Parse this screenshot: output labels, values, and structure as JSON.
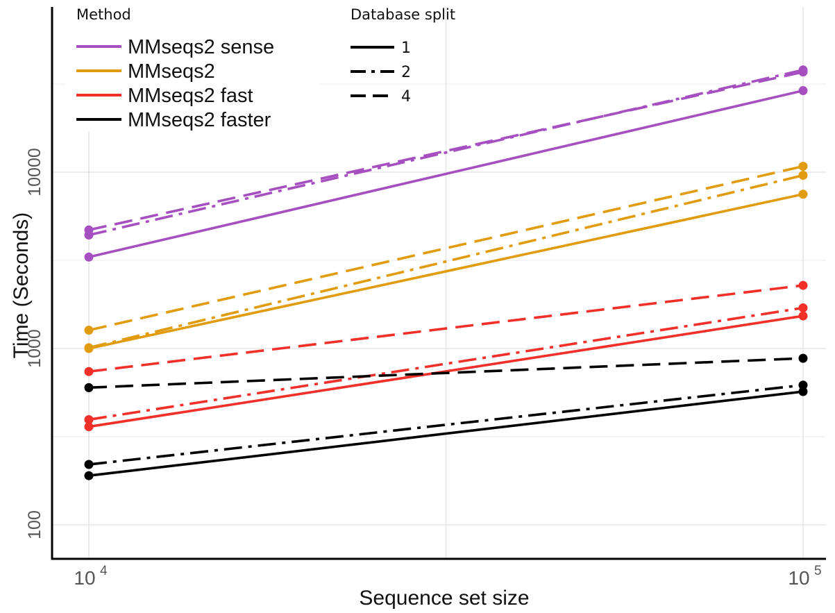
{
  "chart_data": {
    "type": "line",
    "xlabel": "Sequence set size",
    "ylabel": "Time (Seconds)",
    "x_scale": "log",
    "y_scale": "log",
    "x": [
      10000,
      100000
    ],
    "x_tick_labels": [
      {
        "base": "10",
        "exp": "4"
      },
      {
        "base": "10",
        "exp": "5"
      }
    ],
    "y_ticks": [
      100,
      1000,
      10000
    ],
    "y_tick_labels": [
      "100",
      "1000",
      "10000"
    ],
    "grid": true,
    "legend_method_title": "Method",
    "legend_split_title": "Database split",
    "methods": [
      {
        "name": "MMseqs2 sense",
        "color": "#a64fc1"
      },
      {
        "name": "MMseqs2",
        "color": "#e19b0e"
      },
      {
        "name": "MMseqs2 fast",
        "color": "#f2302a"
      },
      {
        "name": "MMseqs2 faster",
        "color": "#000000"
      }
    ],
    "splits": [
      {
        "name": "1",
        "style": "solid"
      },
      {
        "name": "2",
        "style": "dashdot"
      },
      {
        "name": "4",
        "style": "dashed"
      }
    ],
    "series": [
      {
        "method": "MMseqs2 sense",
        "split": "1",
        "values": [
          3300,
          29000
        ]
      },
      {
        "method": "MMseqs2 sense",
        "split": "2",
        "values": [
          4400,
          38000
        ]
      },
      {
        "method": "MMseqs2 sense",
        "split": "4",
        "values": [
          4700,
          37000
        ]
      },
      {
        "method": "MMseqs2",
        "split": "1",
        "values": [
          1000,
          7500
        ]
      },
      {
        "method": "MMseqs2",
        "split": "2",
        "values": [
          1010,
          9600
        ]
      },
      {
        "method": "MMseqs2",
        "split": "4",
        "values": [
          1270,
          10800
        ]
      },
      {
        "method": "MMseqs2 fast",
        "split": "1",
        "values": [
          360,
          1530
        ]
      },
      {
        "method": "MMseqs2 fast",
        "split": "2",
        "values": [
          395,
          1700
        ]
      },
      {
        "method": "MMseqs2 fast",
        "split": "4",
        "values": [
          740,
          2280
        ]
      },
      {
        "method": "MMseqs2 faster",
        "split": "1",
        "values": [
          190,
          570
        ]
      },
      {
        "method": "MMseqs2 faster",
        "split": "2",
        "values": [
          220,
          620
        ]
      },
      {
        "method": "MMseqs2 faster",
        "split": "4",
        "values": [
          600,
          880
        ]
      }
    ]
  }
}
